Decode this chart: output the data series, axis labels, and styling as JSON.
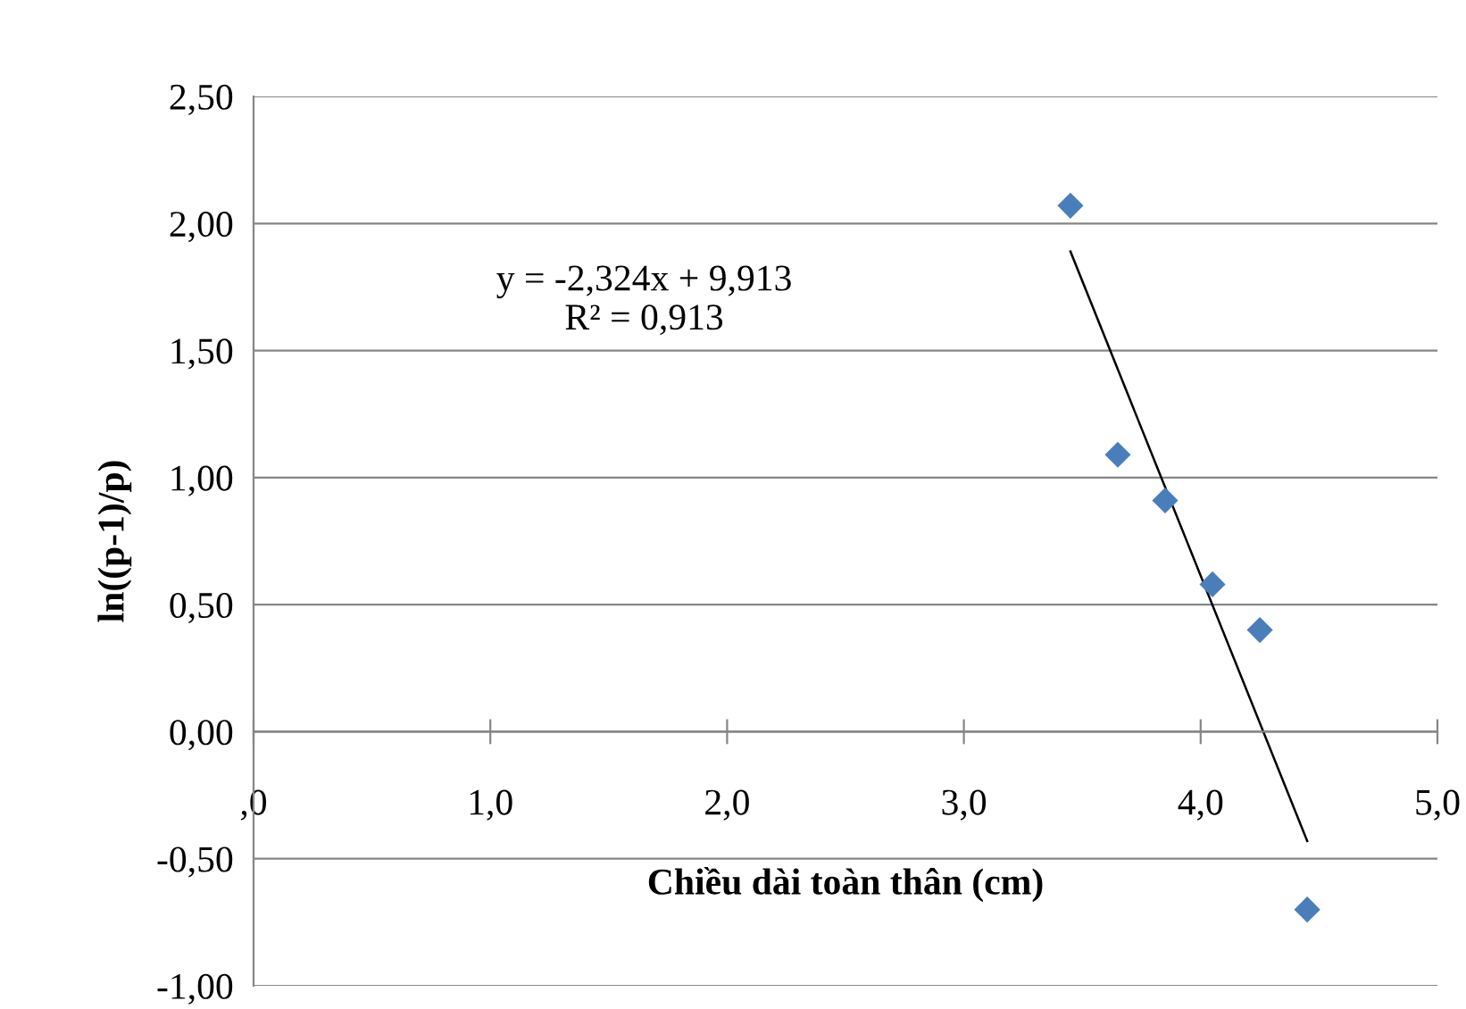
{
  "chart_data": {
    "type": "scatter",
    "xlabel": "Chiều dài toàn thân (cm)",
    "ylabel": "ln((p-1)/p)",
    "annotations": [
      "y = -2,324x + 9,913\nR² = 0,913"
    ],
    "xlim": [
      0,
      5
    ],
    "ylim": [
      -1,
      2.5
    ],
    "xticks": [
      {
        "value": 0,
        "label": ",0"
      },
      {
        "value": 1,
        "label": "1,0"
      },
      {
        "value": 2,
        "label": "2,0"
      },
      {
        "value": 3,
        "label": "3,0"
      },
      {
        "value": 4,
        "label": "4,0"
      },
      {
        "value": 5,
        "label": "5,0"
      }
    ],
    "yticks": [
      {
        "value": -1,
        "label": "-1,00"
      },
      {
        "value": -0.5,
        "label": "-0,50"
      },
      {
        "value": 0,
        "label": "0,00"
      },
      {
        "value": 0.5,
        "label": "0,50"
      },
      {
        "value": 1,
        "label": "1,00"
      },
      {
        "value": 1.5,
        "label": "1,50"
      },
      {
        "value": 2,
        "label": "2,00"
      },
      {
        "value": 2.5,
        "label": "2,50"
      }
    ],
    "grid": "y",
    "marker": "diamond",
    "series": [
      {
        "color": "#4a7ebb",
        "x": [
          3.45,
          3.65,
          3.85,
          4.05,
          4.25,
          4.45
        ],
        "values": [
          2.07,
          1.09,
          0.91,
          0.58,
          0.4,
          -0.7
        ]
      },
      {
        "type": "line",
        "color": "#000000",
        "marker": "none",
        "line_style": "solid",
        "x": [
          3.45,
          4.45
        ],
        "values": [
          1.89,
          -0.43
        ]
      }
    ]
  }
}
